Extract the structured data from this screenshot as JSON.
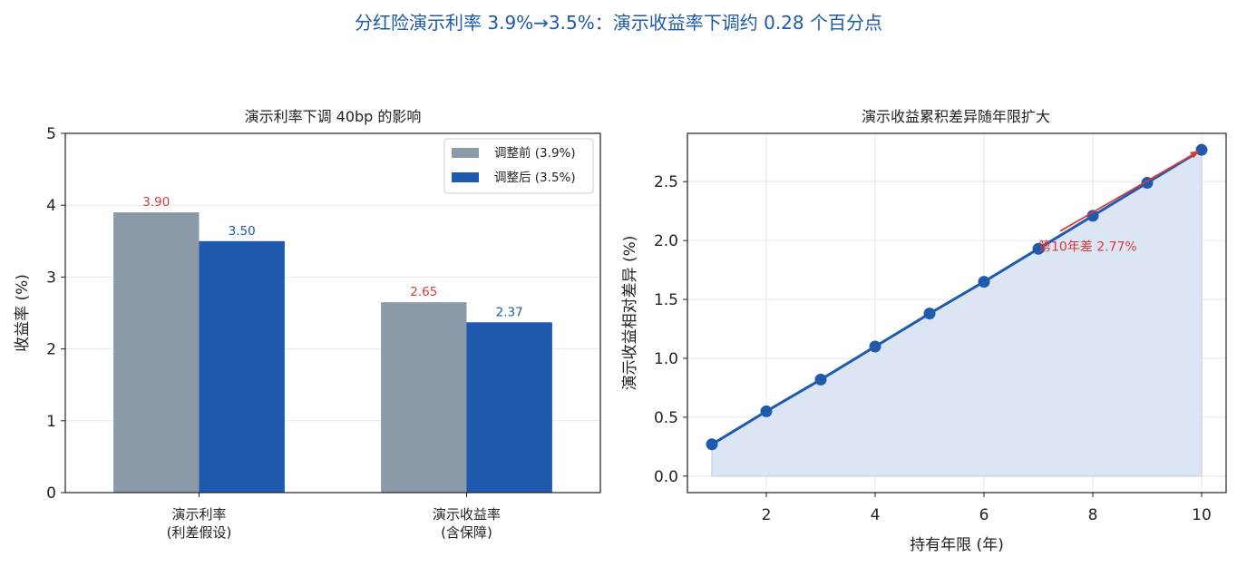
{
  "figure": {
    "suptitle": "分红险演示利率 3.9%→3.5%：演示收益率下调约 0.28 个百分点",
    "title_color": "#1f5aa8"
  },
  "chart_data": [
    {
      "type": "bar",
      "title": "演示利率下调 40bp 的影响",
      "categories": [
        [
          "演示利率",
          "(利差假设)"
        ],
        [
          "演示收益率",
          "(含保障)"
        ]
      ],
      "series": [
        {
          "name": "调整前 (3.9%)",
          "values": [
            3.9,
            2.65
          ],
          "color": "#8a9aa9",
          "label_color": "#d93a3a",
          "labels": [
            "3.90",
            "2.65"
          ]
        },
        {
          "name": "调整后 (3.5%)",
          "values": [
            3.5,
            2.37
          ],
          "color": "#1f5aaf",
          "label_color": "#1f5aa8",
          "labels": [
            "3.50",
            "2.37"
          ]
        }
      ],
      "xlabel": "",
      "ylabel": "收益率 (%)",
      "ylim": [
        0,
        5
      ],
      "yticks": [
        0,
        1,
        2,
        3,
        4,
        5
      ],
      "grid": "y",
      "legend": "top-right"
    },
    {
      "type": "line",
      "title": "演示收益累积差异随年限扩大",
      "x": [
        1,
        2,
        3,
        4,
        5,
        6,
        7,
        8,
        9,
        10
      ],
      "y": [
        0.27,
        0.55,
        0.82,
        1.1,
        1.38,
        1.65,
        1.93,
        2.21,
        2.49,
        2.77
      ],
      "xlabel": "持有年限 (年)",
      "ylabel": "演示收益相对差异 (%)",
      "xlim": [
        0.55,
        10.45
      ],
      "ylim": [
        -0.14,
        2.91
      ],
      "xticks": [
        2,
        4,
        6,
        8,
        10
      ],
      "yticks": [
        0.0,
        0.5,
        1.0,
        1.5,
        2.0,
        2.5
      ],
      "ytick_labels": [
        "0.0",
        "0.5",
        "1.0",
        "1.5",
        "2.0",
        "2.5"
      ],
      "grid": "both",
      "fill": true,
      "line_color": "#1f5aaf",
      "fill_color": "#dbe5f3",
      "annotation": {
        "text": "第10年差 2.77%",
        "from": [
          7.4,
          2.08
        ],
        "to": [
          10,
          2.77
        ],
        "text_x": 7.0,
        "text_y": 1.95,
        "color": "#d93a3a"
      }
    }
  ]
}
